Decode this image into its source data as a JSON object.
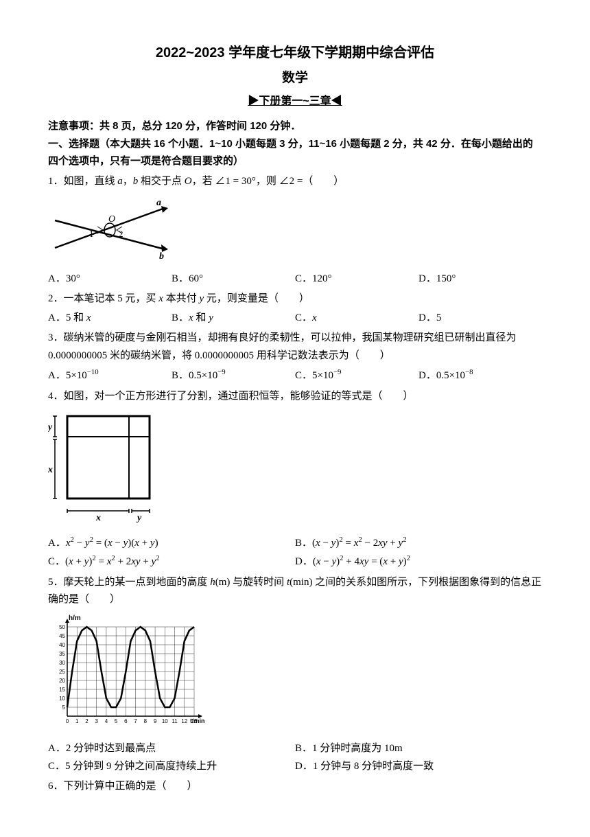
{
  "header": {
    "title": "2022~2023 学年度七年级下学期期中综合评估",
    "subject": "数学",
    "chapter_prefix": "▶",
    "chapter_text": "下册第一~三章",
    "chapter_suffix": "◀"
  },
  "notice": "注意事项：共 8 页，总分 120 分，作答时间 120 分钟．",
  "section1": "一、选择题（本大题共 16 个小题．1~10 小题每题 3 分，11~16 小题每题 2 分，共 42 分．在每小题给出的四个选项中，只有一项是符合题目要求的）",
  "q1": {
    "text_pre": "1．如图，直线 ",
    "text_mid": "，",
    "text_mid2": " 相交于点 ",
    "text_mid3": "，若 ∠1 = 30°，则 ∠2 =（　　）",
    "optA": "A．30°",
    "optB": "B．60°",
    "optC": "C．120°",
    "optD": "D．150°",
    "fig": {
      "label_a": "a",
      "label_b": "b",
      "label_O": "O",
      "label_1": "1",
      "label_2": "2"
    }
  },
  "q2": {
    "text": "2．一本笔记本 5 元，买 x 本共付 y 元，则变量是（　　）",
    "optA": "A．5 和 x",
    "optB": "B．x 和 y",
    "optC": "C．x",
    "optD": "D．5"
  },
  "q3": {
    "text": "3．碳纳米管的硬度与金刚石相当，却拥有良好的柔韧性，可以拉伸，我国某物理研究组已研制出直径为 0.0000000005 米的碳纳米管，将 0.0000000005 用科学记数法表示为（　　）",
    "optA_pre": "A．5×10",
    "optA_sup": "−10",
    "optB_pre": "B．0.5×10",
    "optB_sup": "−9",
    "optC_pre": "C．5×10",
    "optC_sup": "−9",
    "optD_pre": "D．0.5×10",
    "optD_sup": "−8"
  },
  "q4": {
    "text": "4．如图，对一个正方形进行了分割，通过面积恒等，能够验证的等式是（　　）",
    "optA": "A．x² − y² = (x − y)(x + y)",
    "optB": "B．(x − y)² = x² − 2xy + y²",
    "optC": "C．(x + y)² = x² + 2xy + y²",
    "optD": "D．(x − y)² + 4xy = (x + y)²",
    "fig": {
      "x1": "x",
      "y1": "y",
      "x2": "x",
      "y2": "y"
    }
  },
  "q5": {
    "text": "5．摩天轮上的某一点到地面的高度 h(m) 与旋转时间 t(min) 之间的关系如图所示，下列根据图象得到的信息正确的是（　　）",
    "optA": "A．2 分钟时达到最高点",
    "optB": "B．1 分钟时高度为 10m",
    "optC": "C．5 分钟到 9 分钟之间高度持续上升",
    "optD": "D．1 分钟与 8 分钟时高度一致",
    "chart": {
      "ylabel": "h/m",
      "xlabel": "t/min",
      "yticks": [
        "5",
        "10",
        "15",
        "20",
        "25",
        "30",
        "35",
        "40",
        "45",
        "50"
      ],
      "xticks": [
        "0",
        "1",
        "2",
        "3",
        "4",
        "5",
        "6",
        "7",
        "8",
        "9",
        "10",
        "11",
        "12",
        "13"
      ],
      "ylim": [
        0,
        50
      ],
      "xlim": [
        0,
        13
      ],
      "curve_color": "#000000",
      "grid_color": "#000000",
      "data": [
        [
          0,
          5
        ],
        [
          0.5,
          25
        ],
        [
          1,
          42
        ],
        [
          1.5,
          48
        ],
        [
          2,
          50
        ],
        [
          2.5,
          48
        ],
        [
          3,
          42
        ],
        [
          3.5,
          25
        ],
        [
          4,
          10
        ],
        [
          4.5,
          5
        ],
        [
          5,
          5
        ],
        [
          5.5,
          10
        ],
        [
          6,
          25
        ],
        [
          6.5,
          42
        ],
        [
          7,
          48
        ],
        [
          7.5,
          50
        ],
        [
          8,
          48
        ],
        [
          8.5,
          42
        ],
        [
          9,
          25
        ],
        [
          9.5,
          10
        ],
        [
          10,
          5
        ],
        [
          10.5,
          5
        ],
        [
          11,
          10
        ],
        [
          11.5,
          25
        ],
        [
          12,
          42
        ],
        [
          12.5,
          48
        ],
        [
          13,
          50
        ]
      ]
    }
  },
  "q6": {
    "text": "6．下列计算中正确的是（　　）"
  }
}
